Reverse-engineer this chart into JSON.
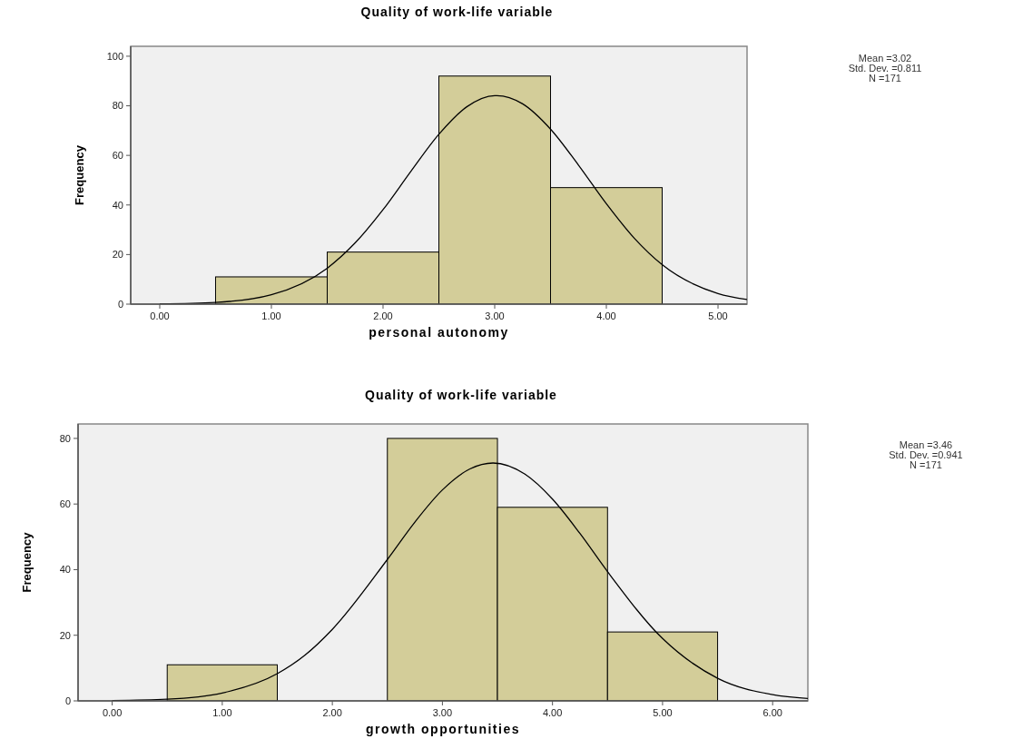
{
  "chart_data": [
    {
      "type": "histogram",
      "title": "Quality of work-life variable",
      "xlabel": "personal autonomy",
      "ylabel": "Frequency",
      "bins": [
        0.5,
        1.5,
        2.5,
        3.5,
        4.5
      ],
      "values": [
        11,
        21,
        92,
        47
      ],
      "color": "#d3cd99",
      "xlim": [
        -0.26,
        5.26
      ],
      "ylim": [
        0,
        104
      ],
      "xticks": [
        {
          "value": 0,
          "label": "0.00"
        },
        {
          "value": 1,
          "label": "1.00"
        },
        {
          "value": 2,
          "label": "2.00"
        },
        {
          "value": 3,
          "label": "3.00"
        },
        {
          "value": 4,
          "label": "4.00"
        },
        {
          "value": 5,
          "label": "5.00"
        }
      ],
      "yticks": [
        0,
        20,
        40,
        60,
        80,
        100
      ],
      "grid": false,
      "annotations": [
        "Mean =3.02",
        "Std. Dev. =0.811",
        "N =171"
      ],
      "series": [
        {
          "type": "line",
          "color": "#000000",
          "x": [
            0,
            0.5,
            1,
            1.5,
            1.75,
            2,
            2.25,
            2.5,
            2.75,
            3,
            3.02,
            3.25,
            3.5,
            3.75,
            4,
            4.25,
            4.5,
            5,
            5.26
          ],
          "values": [
            0.1,
            0.7,
            3.8,
            14.5,
            24.7,
            38.1,
            53.6,
            68.5,
            79.6,
            84.1,
            84.1,
            80.8,
            70.6,
            56.1,
            40.5,
            26.6,
            15.9,
            4.3,
            1.9
          ]
        }
      ]
    },
    {
      "type": "histogram",
      "title": "Quality of work-life variable",
      "xlabel": "growth opportunities",
      "ylabel": "Frequency",
      "bins": [
        0.5,
        1.5,
        2.5,
        3.5,
        4.5,
        5.5
      ],
      "values": [
        11,
        0,
        80,
        59,
        21
      ],
      "color": "#d3cd99",
      "xlim": [
        -0.31,
        6.32
      ],
      "ylim": [
        0,
        84.4
      ],
      "xticks": [
        {
          "value": 0,
          "label": "0.00"
        },
        {
          "value": 1,
          "label": "1.00"
        },
        {
          "value": 2,
          "label": "2.00"
        },
        {
          "value": 3,
          "label": "3.00"
        },
        {
          "value": 4,
          "label": "4.00"
        },
        {
          "value": 5,
          "label": "5.00"
        },
        {
          "value": 6,
          "label": "6.00"
        }
      ],
      "yticks": [
        0,
        20,
        40,
        60,
        80
      ],
      "grid": false,
      "annotations": [
        "Mean =3.46",
        "Std. Dev. =0.941",
        "N =171"
      ],
      "series": [
        {
          "type": "line",
          "color": "#000000",
          "x": [
            0,
            0.5,
            1,
            1.5,
            1.75,
            2,
            2.5,
            2.75,
            3,
            3.25,
            3.46,
            3.75,
            4,
            4.25,
            4.5,
            5,
            5.5,
            6,
            6.32
          ],
          "values": [
            0.1,
            0.5,
            2.4,
            8.3,
            13.9,
            21.8,
            43.1,
            54.5,
            64.3,
            70.7,
            72.5,
            69.1,
            61.5,
            51.0,
            39.4,
            19.0,
            6.9,
            1.9,
            0.7
          ]
        }
      ]
    }
  ]
}
